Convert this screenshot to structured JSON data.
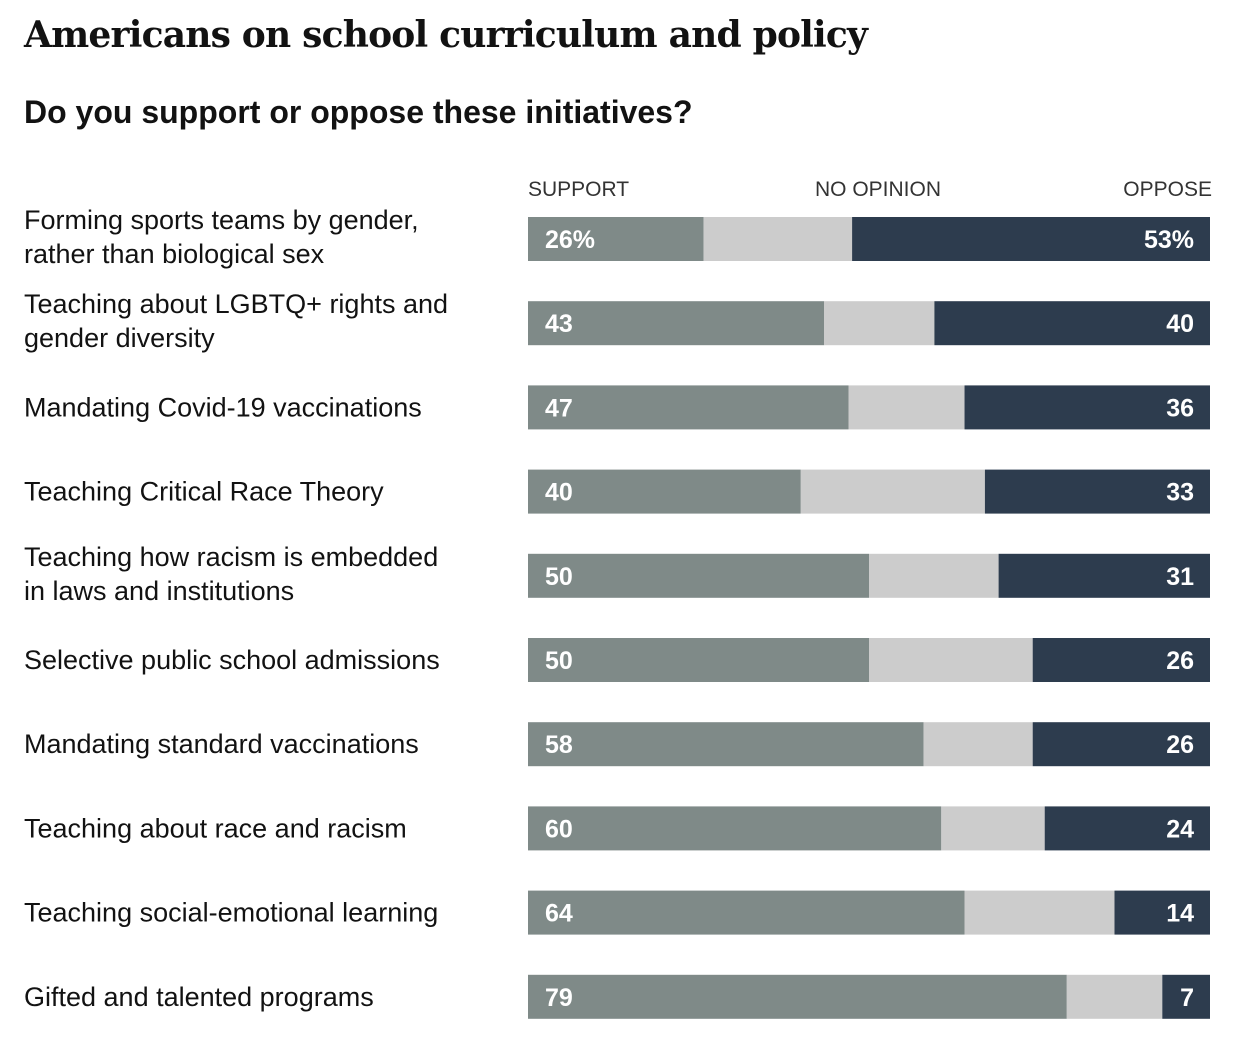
{
  "title": "Americans on school curriculum and policy",
  "subtitle": "Do you support or oppose these initiatives?",
  "legend": {
    "support": "SUPPORT",
    "no_opinion": "NO OPINION",
    "oppose": "OPPOSE"
  },
  "colors": {
    "support": "#7f8a88",
    "no_opinion": "#cccccc",
    "oppose": "#2d3c4e"
  },
  "chart_data": {
    "type": "bar",
    "stacked": true,
    "orientation": "horizontal",
    "title": "Americans on school curriculum and policy",
    "subtitle": "Do you support or oppose these initiatives?",
    "categories": [
      [
        "Forming sports teams by gender,",
        "rather than biological sex"
      ],
      [
        "Teaching about LGBTQ+ rights and",
        "gender diversity"
      ],
      [
        "Mandating Covid-19 vaccinations"
      ],
      [
        "Teaching Critical Race Theory"
      ],
      [
        "Teaching how racism is embedded",
        "in laws and institutions"
      ],
      [
        "Selective public school admissions"
      ],
      [
        "Mandating standard vaccinations"
      ],
      [
        "Teaching about race and racism"
      ],
      [
        "Teaching social-emotional learning"
      ],
      [
        "Gifted and talented programs"
      ]
    ],
    "series": [
      {
        "name": "SUPPORT",
        "values": [
          26,
          43,
          47,
          40,
          50,
          50,
          58,
          60,
          64,
          79
        ]
      },
      {
        "name": "NO OPINION",
        "values": [
          22,
          16,
          17,
          27,
          19,
          24,
          16,
          15,
          22,
          14
        ]
      },
      {
        "name": "OPPOSE",
        "values": [
          53,
          40,
          36,
          33,
          31,
          26,
          26,
          24,
          14,
          7
        ]
      }
    ],
    "support_labels": [
      "26%",
      "43",
      "47",
      "40",
      "50",
      "50",
      "58",
      "60",
      "64",
      "79"
    ],
    "oppose_labels": [
      "53%",
      "40",
      "36",
      "33",
      "31",
      "26",
      "26",
      "24",
      "14",
      "7"
    ],
    "legend_position": "top",
    "units": "percent"
  }
}
